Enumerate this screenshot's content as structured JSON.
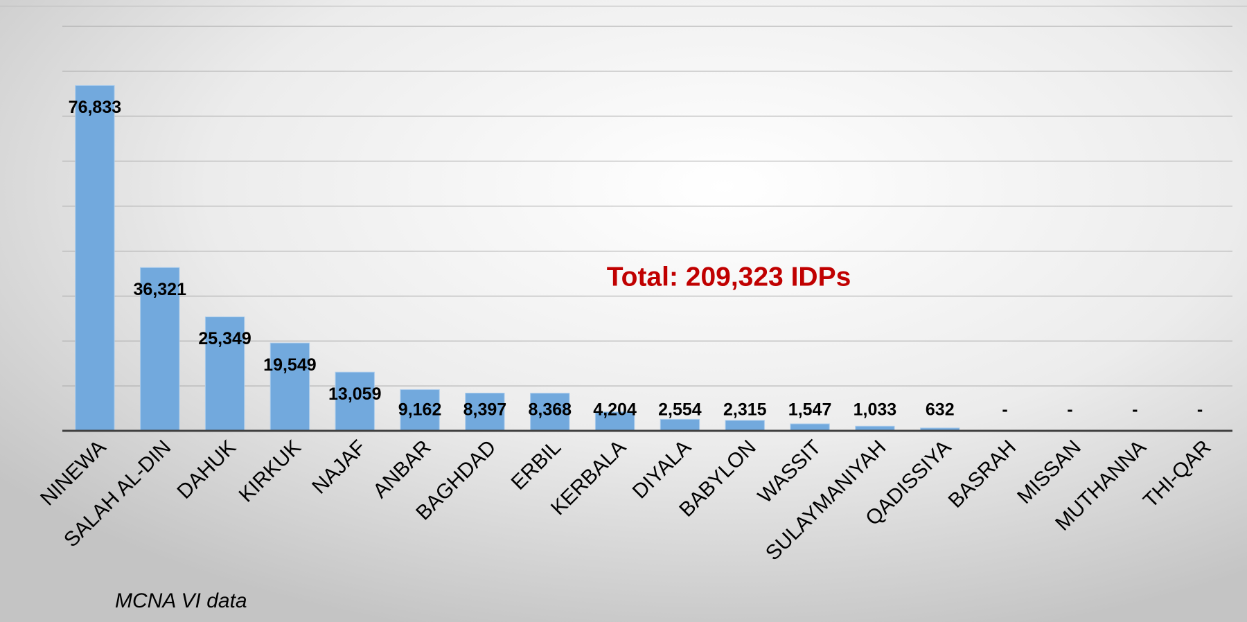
{
  "chart_data": {
    "type": "bar",
    "annotations": [
      "Total: 209,323 IDPs",
      "MCNA VI data"
    ],
    "categories": [
      "NINEWA",
      "SALAH AL-DIN",
      "DAHUK",
      "KIRKUK",
      "NAJAF",
      "ANBAR",
      "BAGHDAD",
      "ERBIL",
      "KERBALA",
      "DIYALA",
      "BABYLON",
      "WASSIT",
      "SULAYMANIYAH",
      "QADISSIYA",
      "BASRAH",
      "MISSAN",
      "MUTHANNA",
      "THI-QAR"
    ],
    "values": [
      76833,
      36321,
      25349,
      19549,
      13059,
      9162,
      8397,
      8368,
      4204,
      2554,
      2315,
      1547,
      1033,
      632,
      0,
      0,
      0,
      0
    ],
    "value_labels": [
      "76,833",
      "36,321",
      "25,349",
      "19,549",
      "13,059",
      "9,162",
      "8,397",
      "8,368",
      "4,204",
      "2,554",
      "2,315",
      "1,547",
      "1,033",
      "632",
      "-",
      "-",
      "-",
      "-"
    ],
    "color": "#72a9dd",
    "ylim": [
      0,
      90000
    ],
    "yticks": [
      0,
      10000,
      20000,
      30000,
      40000,
      50000,
      60000,
      70000,
      80000,
      90000
    ],
    "grid": true
  }
}
